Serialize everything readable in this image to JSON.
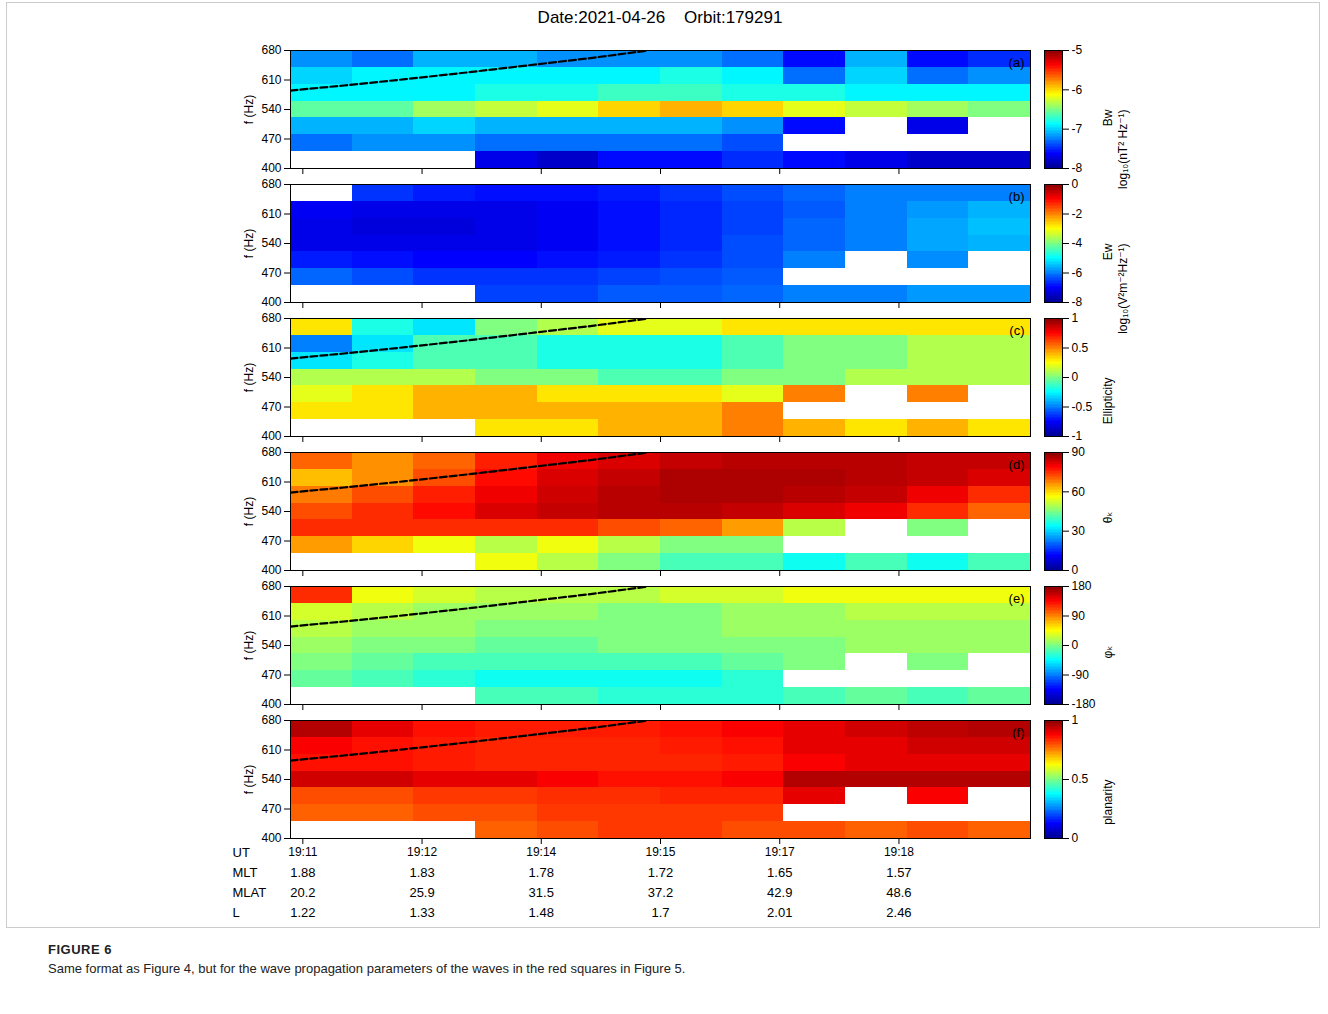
{
  "title": "Date:2021-04-26    Orbit:179291",
  "caption": {
    "label": "FIGURE 6",
    "text": "Same format as Figure 4, but for the wave propagation parameters of the waves in the red squares in Figure 5."
  },
  "chart_data": [
    {
      "type": "heatmap",
      "panel": "(a)",
      "ylabel": "f (Hz)",
      "tick_labels": "y",
      "xlim": [
        10.85,
        19.85
      ],
      "xticks": [
        11,
        12.45,
        13.9,
        15.35,
        16.8,
        18.25
      ],
      "ylim": [
        400,
        680
      ],
      "yticks": [
        400,
        470,
        540,
        610,
        680
      ],
      "x_edges": [
        10.85,
        11.6,
        12.35,
        13.1,
        13.85,
        14.6,
        15.35,
        16.1,
        16.85,
        17.6,
        18.35,
        19.1,
        19.85
      ],
      "y_edges": [
        400,
        440,
        480,
        520,
        560,
        600,
        640,
        680
      ],
      "cells": [
        [
          null,
          null,
          null,
          -7.7,
          -7.8,
          -7.6,
          -7.6,
          -7.5,
          -7.6,
          -7.7,
          -7.8,
          -7.8
        ],
        [
          -7.3,
          -7.2,
          -7.2,
          -7.3,
          -7.3,
          -7.3,
          -7.3,
          -7.4,
          null,
          null,
          null,
          null
        ],
        [
          -7.1,
          -7.1,
          -7.0,
          -7.1,
          -7.1,
          -7.1,
          -7.1,
          -7.2,
          -7.6,
          null,
          -7.7,
          null
        ],
        [
          -6.6,
          -6.6,
          -6.4,
          -6.3,
          -6.2,
          -6.0,
          -5.9,
          -6.0,
          -6.2,
          -6.3,
          -6.4,
          -6.5
        ],
        [
          -6.9,
          -6.9,
          -6.9,
          -6.8,
          -6.8,
          -6.7,
          -6.7,
          -6.8,
          -6.8,
          -6.9,
          -6.9,
          -6.9
        ],
        [
          -7.0,
          -6.9,
          -6.9,
          -6.9,
          -6.9,
          -6.9,
          -6.8,
          -6.9,
          -7.3,
          -7.0,
          -7.3,
          -7.2
        ],
        [
          -7.2,
          -7.3,
          -7.1,
          -7.1,
          -7.2,
          -7.2,
          -7.2,
          -7.3,
          -7.6,
          -7.1,
          -7.6,
          -7.5
        ]
      ],
      "colorbar": {
        "lim": [
          -8,
          -5
        ],
        "ticks": [
          -5,
          -6,
          -7,
          -8
        ],
        "label": [
          "Bw",
          "log₁₀(nT² Hz⁻¹)"
        ]
      },
      "lines": [
        {
          "x": [
            10.85,
            11.5,
            12.25,
            13.0,
            13.75,
            14.5,
            15.2
          ],
          "y": [
            585,
            597,
            612,
            628,
            645,
            662,
            680
          ],
          "color": "#000000",
          "line_style": "dashed"
        }
      ]
    },
    {
      "type": "heatmap",
      "panel": "(b)",
      "ylabel": "f (Hz)",
      "tick_labels": "y",
      "xlim": [
        10.85,
        19.85
      ],
      "xticks": [
        11,
        12.45,
        13.9,
        15.35,
        16.8,
        18.25
      ],
      "ylim": [
        400,
        680
      ],
      "yticks": [
        400,
        470,
        540,
        610,
        680
      ],
      "x_edges": [
        10.85,
        11.6,
        12.35,
        13.1,
        13.85,
        14.6,
        15.35,
        16.1,
        16.85,
        17.6,
        18.35,
        19.1,
        19.85
      ],
      "y_edges": [
        400,
        440,
        480,
        520,
        560,
        600,
        640,
        680
      ],
      "cells": [
        [
          null,
          null,
          null,
          -6.5,
          -6.5,
          -6.3,
          -6.3,
          -6.2,
          -6.0,
          -6.0,
          -5.8,
          -5.8
        ],
        [
          -6.2,
          -6.4,
          -6.6,
          -6.6,
          -6.6,
          -6.5,
          -6.4,
          -6.3,
          null,
          null,
          null,
          null
        ],
        [
          -6.8,
          -6.9,
          -7.0,
          -7.0,
          -6.9,
          -6.8,
          -6.6,
          -6.4,
          -6.0,
          null,
          -5.9,
          null
        ],
        [
          -7.2,
          -7.2,
          -7.2,
          -7.2,
          -7.1,
          -6.9,
          -6.7,
          -6.4,
          -6.2,
          -6.0,
          -5.7,
          -5.6
        ],
        [
          -7.2,
          -7.3,
          -7.3,
          -7.2,
          -7.1,
          -6.9,
          -6.7,
          -6.5,
          -6.2,
          -6.0,
          -5.7,
          -5.5
        ],
        [
          -7.1,
          -7.2,
          -7.2,
          -7.2,
          -7.1,
          -6.9,
          -6.7,
          -6.5,
          -6.3,
          -6.0,
          -5.8,
          -5.6
        ],
        [
          null,
          -6.6,
          -6.8,
          -6.9,
          -6.9,
          -6.8,
          -6.6,
          -6.4,
          -6.2,
          -6.0,
          -6.0,
          -6.0
        ]
      ],
      "colorbar": {
        "lim": [
          -8,
          0
        ],
        "ticks": [
          0,
          -2,
          -4,
          -6,
          -8
        ],
        "label": [
          "Ew",
          "log₁₀(V²m⁻²Hz⁻¹)"
        ]
      },
      "lines": []
    },
    {
      "type": "heatmap",
      "panel": "(c)",
      "ylabel": "f (Hz)",
      "tick_labels": "y",
      "xlim": [
        10.85,
        19.85
      ],
      "xticks": [
        11,
        12.45,
        13.9,
        15.35,
        16.8,
        18.25
      ],
      "ylim": [
        400,
        680
      ],
      "yticks": [
        400,
        470,
        540,
        610,
        680
      ],
      "x_edges": [
        10.85,
        11.6,
        12.35,
        13.1,
        13.85,
        14.6,
        15.35,
        16.1,
        16.85,
        17.6,
        18.35,
        19.1,
        19.85
      ],
      "y_edges": [
        400,
        440,
        480,
        520,
        560,
        600,
        640,
        680
      ],
      "cells": [
        [
          null,
          null,
          null,
          0.3,
          0.3,
          0.4,
          0.4,
          0.5,
          0.4,
          0.3,
          0.4,
          0.3
        ],
        [
          0.3,
          0.3,
          0.4,
          0.4,
          0.4,
          0.4,
          0.4,
          0.5,
          null,
          null,
          null,
          null
        ],
        [
          0.2,
          0.3,
          0.4,
          0.4,
          0.3,
          0.3,
          0.3,
          0.2,
          0.5,
          null,
          0.5,
          null
        ],
        [
          0.1,
          0.1,
          0.1,
          0.0,
          0.0,
          -0.1,
          -0.1,
          0.0,
          0.0,
          0.1,
          0.1,
          0.1
        ],
        [
          -0.3,
          -0.2,
          -0.1,
          -0.1,
          -0.2,
          -0.2,
          -0.2,
          -0.1,
          0.0,
          0.0,
          0.1,
          0.1
        ],
        [
          -0.5,
          -0.3,
          -0.1,
          -0.1,
          -0.2,
          -0.2,
          -0.2,
          -0.1,
          0.0,
          0.0,
          0.1,
          0.1
        ],
        [
          0.3,
          -0.2,
          -0.3,
          0.0,
          0.1,
          0.2,
          0.2,
          0.3,
          0.3,
          0.3,
          0.3,
          0.3
        ]
      ],
      "colorbar": {
        "lim": [
          -1,
          1
        ],
        "ticks": [
          1,
          0.5,
          0,
          -0.5,
          -1
        ],
        "label": [
          "Ellipticity"
        ]
      },
      "lines": [
        {
          "x": [
            10.85,
            11.5,
            12.25,
            13.0,
            13.75,
            14.5,
            15.2
          ],
          "y": [
            585,
            597,
            612,
            628,
            645,
            662,
            680
          ],
          "color": "#000000",
          "line_style": "dashed"
        }
      ]
    },
    {
      "type": "heatmap",
      "panel": "(d)",
      "ylabel": "f (Hz)",
      "tick_labels": "y",
      "xlim": [
        10.85,
        19.85
      ],
      "xticks": [
        11,
        12.45,
        13.9,
        15.35,
        16.8,
        18.25
      ],
      "ylim": [
        400,
        680
      ],
      "yticks": [
        400,
        470,
        540,
        610,
        680
      ],
      "x_edges": [
        10.85,
        11.6,
        12.35,
        13.1,
        13.85,
        14.6,
        15.35,
        16.1,
        16.85,
        17.6,
        18.35,
        19.1,
        19.85
      ],
      "y_edges": [
        400,
        440,
        480,
        520,
        560,
        600,
        640,
        680
      ],
      "cells": [
        [
          null,
          null,
          null,
          55,
          50,
          45,
          40,
          40,
          35,
          40,
          35,
          40
        ],
        [
          65,
          60,
          55,
          50,
          55,
          50,
          45,
          45,
          null,
          null,
          null,
          null
        ],
        [
          75,
          75,
          75,
          75,
          75,
          72,
          70,
          65,
          50,
          null,
          45,
          null
        ],
        [
          72,
          75,
          78,
          82,
          84,
          85,
          85,
          84,
          82,
          80,
          75,
          70
        ],
        [
          68,
          72,
          76,
          80,
          83,
          85,
          86,
          86,
          85,
          84,
          80,
          75
        ],
        [
          62,
          66,
          72,
          78,
          82,
          84,
          86,
          86,
          86,
          85,
          84,
          82
        ],
        [
          70,
          66,
          70,
          76,
          80,
          82,
          84,
          85,
          85,
          85,
          84,
          84
        ]
      ],
      "colorbar": {
        "lim": [
          0,
          90
        ],
        "ticks": [
          90,
          60,
          30,
          0
        ],
        "label": [
          "θₖ"
        ]
      },
      "lines": [
        {
          "x": [
            10.85,
            11.5,
            12.25,
            13.0,
            13.75,
            14.5,
            15.2
          ],
          "y": [
            585,
            597,
            612,
            628,
            645,
            662,
            680
          ],
          "color": "#000000",
          "line_style": "dashed"
        }
      ]
    },
    {
      "type": "heatmap",
      "panel": "(e)",
      "ylabel": "f (Hz)",
      "tick_labels": "y",
      "xlim": [
        10.85,
        19.85
      ],
      "xticks": [
        11,
        12.45,
        13.9,
        15.35,
        16.8,
        18.25
      ],
      "ylim": [
        400,
        680
      ],
      "yticks": [
        400,
        470,
        540,
        610,
        680
      ],
      "x_edges": [
        10.85,
        11.6,
        12.35,
        13.1,
        13.85,
        14.6,
        15.35,
        16.1,
        16.85,
        17.6,
        18.35,
        19.1,
        19.85
      ],
      "y_edges": [
        400,
        440,
        480,
        520,
        560,
        600,
        640,
        680
      ],
      "cells": [
        [
          null,
          null,
          null,
          -20,
          -20,
          -30,
          -30,
          -30,
          -20,
          -10,
          -20,
          -10
        ],
        [
          -10,
          -20,
          -30,
          -40,
          -40,
          -40,
          -40,
          -30,
          null,
          null,
          null,
          null
        ],
        [
          0,
          -10,
          -20,
          -20,
          -20,
          -20,
          -20,
          -10,
          0,
          null,
          0,
          null
        ],
        [
          10,
          0,
          0,
          -10,
          -10,
          0,
          0,
          0,
          0,
          10,
          10,
          10
        ],
        [
          20,
          10,
          10,
          0,
          0,
          0,
          0,
          10,
          10,
          10,
          10,
          10
        ],
        [
          30,
          20,
          10,
          10,
          10,
          0,
          0,
          10,
          10,
          20,
          20,
          20
        ],
        [
          120,
          40,
          30,
          20,
          20,
          20,
          30,
          30,
          40,
          40,
          40,
          40
        ]
      ],
      "colorbar": {
        "lim": [
          -180,
          180
        ],
        "ticks": [
          180,
          90,
          0,
          -90,
          -180
        ],
        "label": [
          "φₖ"
        ]
      },
      "lines": [
        {
          "x": [
            10.85,
            11.5,
            12.25,
            13.0,
            13.75,
            14.5,
            15.2
          ],
          "y": [
            585,
            597,
            612,
            628,
            645,
            662,
            680
          ],
          "color": "#000000",
          "line_style": "dashed"
        }
      ]
    },
    {
      "type": "heatmap",
      "panel": "(f)",
      "ylabel": "f (Hz)",
      "xlabel": "UT",
      "xlim": [
        10.85,
        19.85
      ],
      "xticks": [
        {
          "value": 11,
          "label": "19:11"
        },
        {
          "value": 12.45,
          "label": "19:12"
        },
        {
          "value": 13.9,
          "label": "19:14"
        },
        {
          "value": 15.35,
          "label": "19:15"
        },
        {
          "value": 16.8,
          "label": "19:17"
        },
        {
          "value": 18.25,
          "label": "19:18"
        }
      ],
      "x_rows": [
        {
          "label": "MLT",
          "values": [
            1.88,
            1.83,
            1.78,
            1.72,
            1.65,
            1.57
          ]
        },
        {
          "label": "MLAT",
          "values": [
            20.2,
            25.9,
            31.5,
            37.2,
            42.9,
            48.6
          ]
        },
        {
          "label": "L",
          "values": [
            1.22,
            1.33,
            1.48,
            1.7,
            2.01,
            2.46
          ]
        }
      ],
      "ylim": [
        400,
        680
      ],
      "yticks": [
        400,
        470,
        540,
        610,
        680
      ],
      "x_edges": [
        10.85,
        11.6,
        12.35,
        13.1,
        13.85,
        14.6,
        15.35,
        16.1,
        16.85,
        17.6,
        18.35,
        19.1,
        19.85
      ],
      "y_edges": [
        400,
        440,
        480,
        520,
        560,
        600,
        640,
        680
      ],
      "cells": [
        [
          null,
          null,
          null,
          0.78,
          0.8,
          0.82,
          0.82,
          0.8,
          0.8,
          0.78,
          0.8,
          0.78
        ],
        [
          0.78,
          0.78,
          0.8,
          0.8,
          0.82,
          0.82,
          0.82,
          0.82,
          null,
          null,
          null,
          null
        ],
        [
          0.8,
          0.8,
          0.82,
          0.82,
          0.83,
          0.83,
          0.84,
          0.84,
          0.9,
          null,
          0.88,
          null
        ],
        [
          0.92,
          0.92,
          0.9,
          0.9,
          0.88,
          0.86,
          0.86,
          0.88,
          0.95,
          0.95,
          0.95,
          0.95
        ],
        [
          0.86,
          0.86,
          0.85,
          0.84,
          0.84,
          0.84,
          0.84,
          0.85,
          0.88,
          0.9,
          0.9,
          0.9
        ],
        [
          0.88,
          0.86,
          0.85,
          0.84,
          0.84,
          0.84,
          0.85,
          0.86,
          0.9,
          0.9,
          0.92,
          0.92
        ],
        [
          0.95,
          0.9,
          0.86,
          0.85,
          0.85,
          0.85,
          0.86,
          0.88,
          0.9,
          0.92,
          0.94,
          0.95
        ]
      ],
      "colorbar": {
        "lim": [
          0,
          1
        ],
        "ticks": [
          1,
          0.5,
          0
        ],
        "label": [
          "planarity"
        ]
      },
      "lines": [
        {
          "x": [
            10.85,
            11.5,
            12.25,
            13.0,
            13.75,
            14.5,
            15.2
          ],
          "y": [
            585,
            597,
            612,
            628,
            645,
            662,
            680
          ],
          "color": "#000000",
          "line_style": "dashed"
        }
      ]
    }
  ]
}
